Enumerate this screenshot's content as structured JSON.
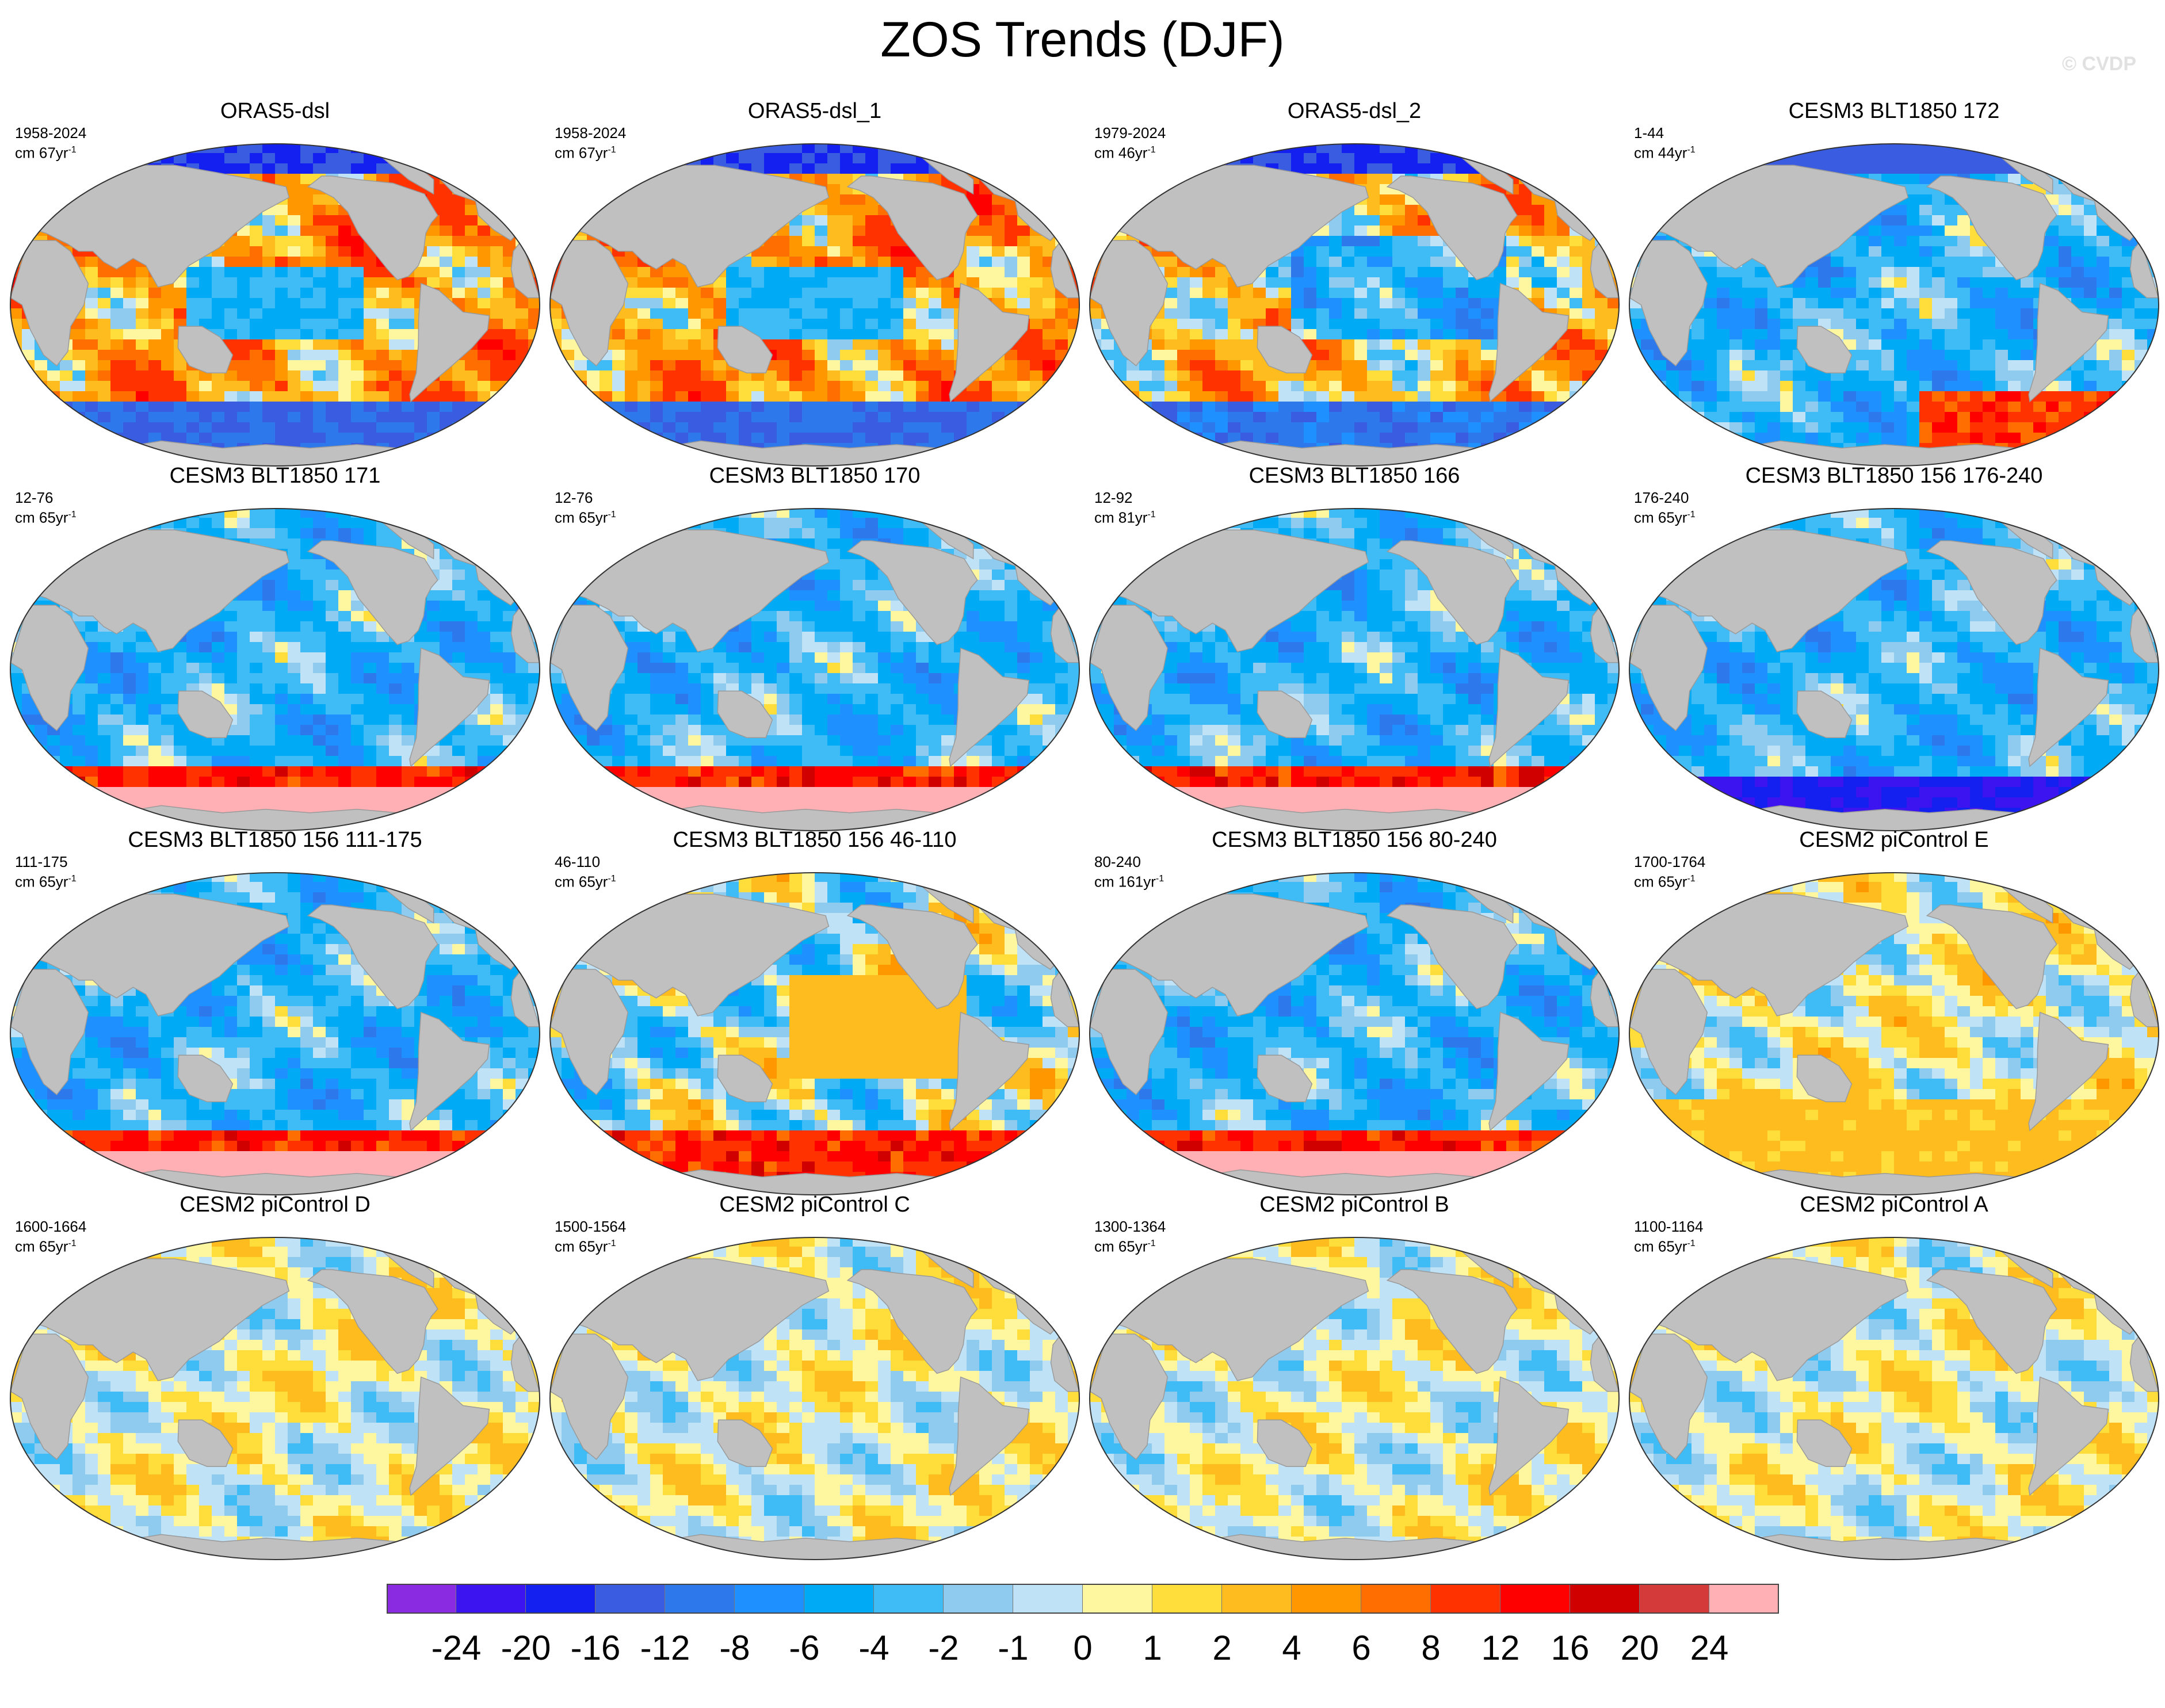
{
  "title": "ZOS Trends (DJF)",
  "watermark": "© CVDP",
  "chart_data": {
    "type": "heatmap",
    "title": "ZOS Trends (DJF)",
    "projection": "Robinson, Pacific-centered",
    "panels": [
      {
        "title": "ORAS5-dsl",
        "period": "1958-2024",
        "units": "cm 67yr",
        "units_exp": "-1",
        "pattern": "obs1"
      },
      {
        "title": "ORAS5-dsl_1",
        "period": "1958-2024",
        "units": "cm 67yr",
        "units_exp": "-1",
        "pattern": "obs1"
      },
      {
        "title": "ORAS5-dsl_2",
        "period": "1979-2024",
        "units": "cm 46yr",
        "units_exp": "-1",
        "pattern": "obs2"
      },
      {
        "title": "CESM3 BLT1850 172",
        "period": "1-44",
        "units": "cm 44yr",
        "units_exp": "-1",
        "pattern": "blue-south"
      },
      {
        "title": "CESM3 BLT1850 171",
        "period": "12-76",
        "units": "cm 65yr",
        "units_exp": "-1",
        "pattern": "blue-red-south"
      },
      {
        "title": "CESM3 BLT1850 170",
        "period": "12-76",
        "units": "cm 65yr",
        "units_exp": "-1",
        "pattern": "blue-red-south"
      },
      {
        "title": "CESM3 BLT1850 166",
        "period": "12-92",
        "units": "cm 81yr",
        "units_exp": "-1",
        "pattern": "blue-red-south"
      },
      {
        "title": "CESM3 BLT1850 156 176-240",
        "period": "176-240",
        "units": "cm 65yr",
        "units_exp": "-1",
        "pattern": "blue-purple-south"
      },
      {
        "title": "CESM3 BLT1850 156 111-175",
        "period": "111-175",
        "units": "cm 65yr",
        "units_exp": "-1",
        "pattern": "blue-red-south"
      },
      {
        "title": "CESM3 BLT1850 156 46-110",
        "period": "46-110",
        "units": "cm 65yr",
        "units_exp": "-1",
        "pattern": "orange-pacific"
      },
      {
        "title": "CESM3 BLT1850 156 80-240",
        "period": "80-240",
        "units": "cm 161yr",
        "units_exp": "-1",
        "pattern": "blue-red-south"
      },
      {
        "title": "CESM2 piControl E",
        "period": "1700-1764",
        "units": "cm 65yr",
        "units_exp": "-1",
        "pattern": "mixed"
      },
      {
        "title": "CESM2 piControl D",
        "period": "1600-1664",
        "units": "cm 65yr",
        "units_exp": "-1",
        "pattern": "mild"
      },
      {
        "title": "CESM2 piControl C",
        "period": "1500-1564",
        "units": "cm 65yr",
        "units_exp": "-1",
        "pattern": "mild"
      },
      {
        "title": "CESM2 piControl B",
        "period": "1300-1364",
        "units": "cm 65yr",
        "units_exp": "-1",
        "pattern": "mild"
      },
      {
        "title": "CESM2 piControl A",
        "period": "1100-1164",
        "units": "cm 65yr",
        "units_exp": "-1",
        "pattern": "mild"
      }
    ],
    "colorbar": {
      "colors": [
        "#8a2be2",
        "#3b14f0",
        "#1420f0",
        "#3a5ce0",
        "#2d78ea",
        "#1e90ff",
        "#00aaf4",
        "#3fbcf6",
        "#8fcbee",
        "#bfe2f7",
        "#fff7a0",
        "#ffde3c",
        "#ffbc1e",
        "#ff9800",
        "#ff6e00",
        "#ff3200",
        "#ff0000",
        "#d00000",
        "#d43a3a",
        "#ffb0b4"
      ],
      "labels": [
        "-24",
        "-20",
        "-16",
        "-12",
        "-8",
        "-6",
        "-4",
        "-2",
        "-1",
        "0",
        "1",
        "2",
        "4",
        "6",
        "8",
        "12",
        "16",
        "20",
        "24"
      ]
    }
  }
}
